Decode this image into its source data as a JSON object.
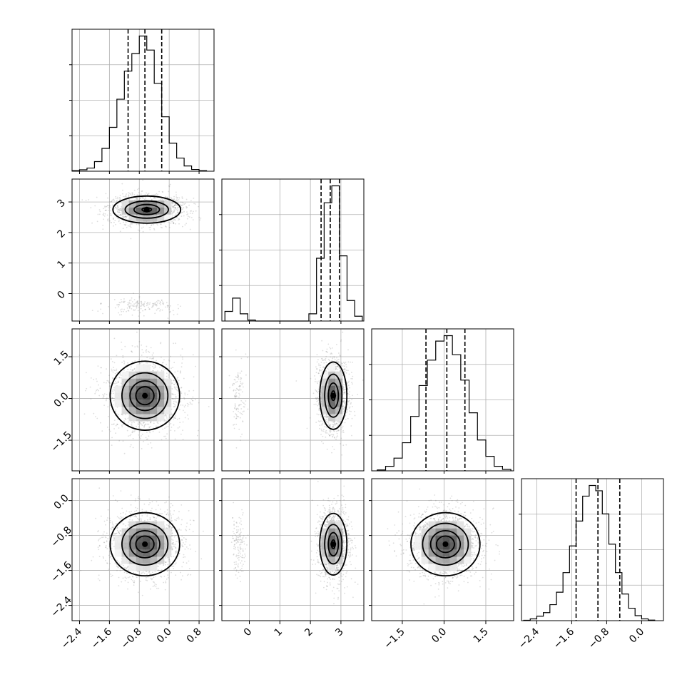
{
  "chart_data": {
    "type": "corner",
    "grid": true,
    "parameters": [
      {
        "xlim": [
          -2.6,
          1.2
        ],
        "ticks": [
          {
            "v": -2.4,
            "label": "−2.4"
          },
          {
            "v": -1.6,
            "label": "−1.6"
          },
          {
            "v": -0.8,
            "label": "−0.8"
          },
          {
            "v": 0.0,
            "label": "0.0"
          },
          {
            "v": 0.8,
            "label": "0.8"
          }
        ],
        "quantiles": [
          -1.1,
          -0.65,
          -0.2
        ],
        "hist_edges": [
          -2.6,
          -2.4,
          -2.2,
          -2.0,
          -1.8,
          -1.6,
          -1.4,
          -1.2,
          -1.0,
          -0.8,
          -0.6,
          -0.4,
          -0.2,
          0.0,
          0.2,
          0.4,
          0.6,
          0.8,
          1.0
        ],
        "hist_counts": [
          3,
          8,
          18,
          55,
          130,
          250,
          410,
          570,
          670,
          770,
          690,
          500,
          310,
          160,
          75,
          30,
          10,
          3
        ]
      },
      {
        "xlim": [
          -0.9,
          3.75
        ],
        "ticks": [
          {
            "v": 0,
            "label": "0"
          },
          {
            "v": 1,
            "label": "1"
          },
          {
            "v": 2,
            "label": "2"
          },
          {
            "v": 3,
            "label": "3"
          }
        ],
        "quantiles": [
          2.35,
          2.65,
          2.95
        ],
        "hist_edges": [
          -0.8,
          -0.55,
          -0.3,
          -0.05,
          0.2,
          0.45,
          0.7,
          0.95,
          1.2,
          1.45,
          1.7,
          1.95,
          2.2,
          2.45,
          2.7,
          2.95,
          3.2,
          3.45,
          3.7
        ],
        "hist_counts": [
          40,
          95,
          30,
          4,
          0,
          0,
          0,
          0,
          0,
          0,
          0,
          30,
          260,
          490,
          560,
          270,
          85,
          20
        ]
      },
      {
        "xlim": [
          -2.6,
          2.5
        ],
        "ticks": [
          {
            "v": -1.5,
            "label": "−1.5"
          },
          {
            "v": 0.0,
            "label": "0.0"
          },
          {
            "v": 1.5,
            "label": "1.5"
          }
        ],
        "quantiles": [
          -0.65,
          0.1,
          0.75
        ],
        "hist_edges": [
          -2.4,
          -2.1,
          -1.8,
          -1.5,
          -1.2,
          -0.9,
          -0.6,
          -0.3,
          0.0,
          0.3,
          0.6,
          0.9,
          1.2,
          1.5,
          1.8,
          2.1,
          2.4
        ],
        "hist_counts": [
          5,
          25,
          70,
          155,
          300,
          470,
          610,
          715,
          745,
          640,
          500,
          320,
          170,
          80,
          25,
          8
        ]
      },
      {
        "xlim": [
          -2.75,
          0.5
        ],
        "ticks": [
          {
            "v": -2.4,
            "label": "−2.4"
          },
          {
            "v": -1.6,
            "label": "−1.6"
          },
          {
            "v": -0.8,
            "label": "−0.8"
          },
          {
            "v": 0.0,
            "label": "0.0"
          }
        ],
        "quantiles": [
          -1.5,
          -1.0,
          -0.5
        ],
        "hist_edges": [
          -2.7,
          -2.55,
          -2.4,
          -2.25,
          -2.1,
          -1.95,
          -1.8,
          -1.65,
          -1.5,
          -1.35,
          -1.2,
          -1.05,
          -0.9,
          -0.75,
          -0.6,
          -0.45,
          -0.3,
          -0.15,
          0.0,
          0.15,
          0.3
        ],
        "hist_counts": [
          2,
          10,
          25,
          45,
          90,
          160,
          270,
          420,
          560,
          700,
          760,
          730,
          600,
          430,
          270,
          150,
          70,
          28,
          10,
          3
        ]
      }
    ],
    "pairs": [
      {
        "row": 1,
        "col": 0,
        "modes": [
          {
            "cx": -0.6,
            "cy": 2.75,
            "sx": 0.45,
            "sy": 0.22,
            "w": 0.9
          },
          {
            "cx": -0.75,
            "cy": -0.4,
            "sx": 0.45,
            "sy": 0.12,
            "w": 0.1
          }
        ]
      },
      {
        "row": 2,
        "col": 0,
        "modes": [
          {
            "cx": -0.65,
            "cy": 0.1,
            "sx": 0.45,
            "sy": 0.6,
            "w": 1.0
          }
        ]
      },
      {
        "row": 2,
        "col": 1,
        "modes": [
          {
            "cx": 2.75,
            "cy": 0.1,
            "sx": 0.22,
            "sy": 0.6,
            "w": 0.9
          },
          {
            "cx": -0.35,
            "cy": 0.1,
            "sx": 0.1,
            "sy": 0.6,
            "w": 0.1
          }
        ]
      },
      {
        "row": 3,
        "col": 0,
        "modes": [
          {
            "cx": -0.65,
            "cy": -1.0,
            "sx": 0.45,
            "sy": 0.35,
            "w": 1.0
          }
        ]
      },
      {
        "row": 3,
        "col": 1,
        "modes": [
          {
            "cx": 2.75,
            "cy": -1.0,
            "sx": 0.22,
            "sy": 0.35,
            "w": 0.9
          },
          {
            "cx": -0.35,
            "cy": -1.0,
            "sx": 0.1,
            "sy": 0.35,
            "w": 0.1
          }
        ]
      },
      {
        "row": 3,
        "col": 2,
        "modes": [
          {
            "cx": 0.05,
            "cy": -1.0,
            "sx": 0.6,
            "sy": 0.35,
            "w": 1.0
          }
        ]
      }
    ],
    "row_ylims": [
      null,
      [
        -0.9,
        3.75
      ],
      [
        -2.6,
        2.5
      ],
      [
        -2.75,
        0.5
      ]
    ],
    "row_ticks": [
      null,
      [
        {
          "v": 0,
          "label": "0"
        },
        {
          "v": 1,
          "label": "1"
        },
        {
          "v": 2,
          "label": "2"
        },
        {
          "v": 3,
          "label": "3"
        }
      ],
      [
        {
          "v": -1.5,
          "label": "−1.5"
        },
        {
          "v": 0.0,
          "label": "0.0"
        },
        {
          "v": 1.5,
          "label": "1.5"
        }
      ],
      [
        {
          "v": -2.4,
          "label": "−2.4"
        },
        {
          "v": -1.6,
          "label": "−1.6"
        },
        {
          "v": -0.8,
          "label": "−0.8"
        },
        {
          "v": 0.0,
          "label": "0.0"
        }
      ]
    ],
    "contour_levels": [
      0.118,
      0.393,
      0.675,
      0.865
    ]
  }
}
